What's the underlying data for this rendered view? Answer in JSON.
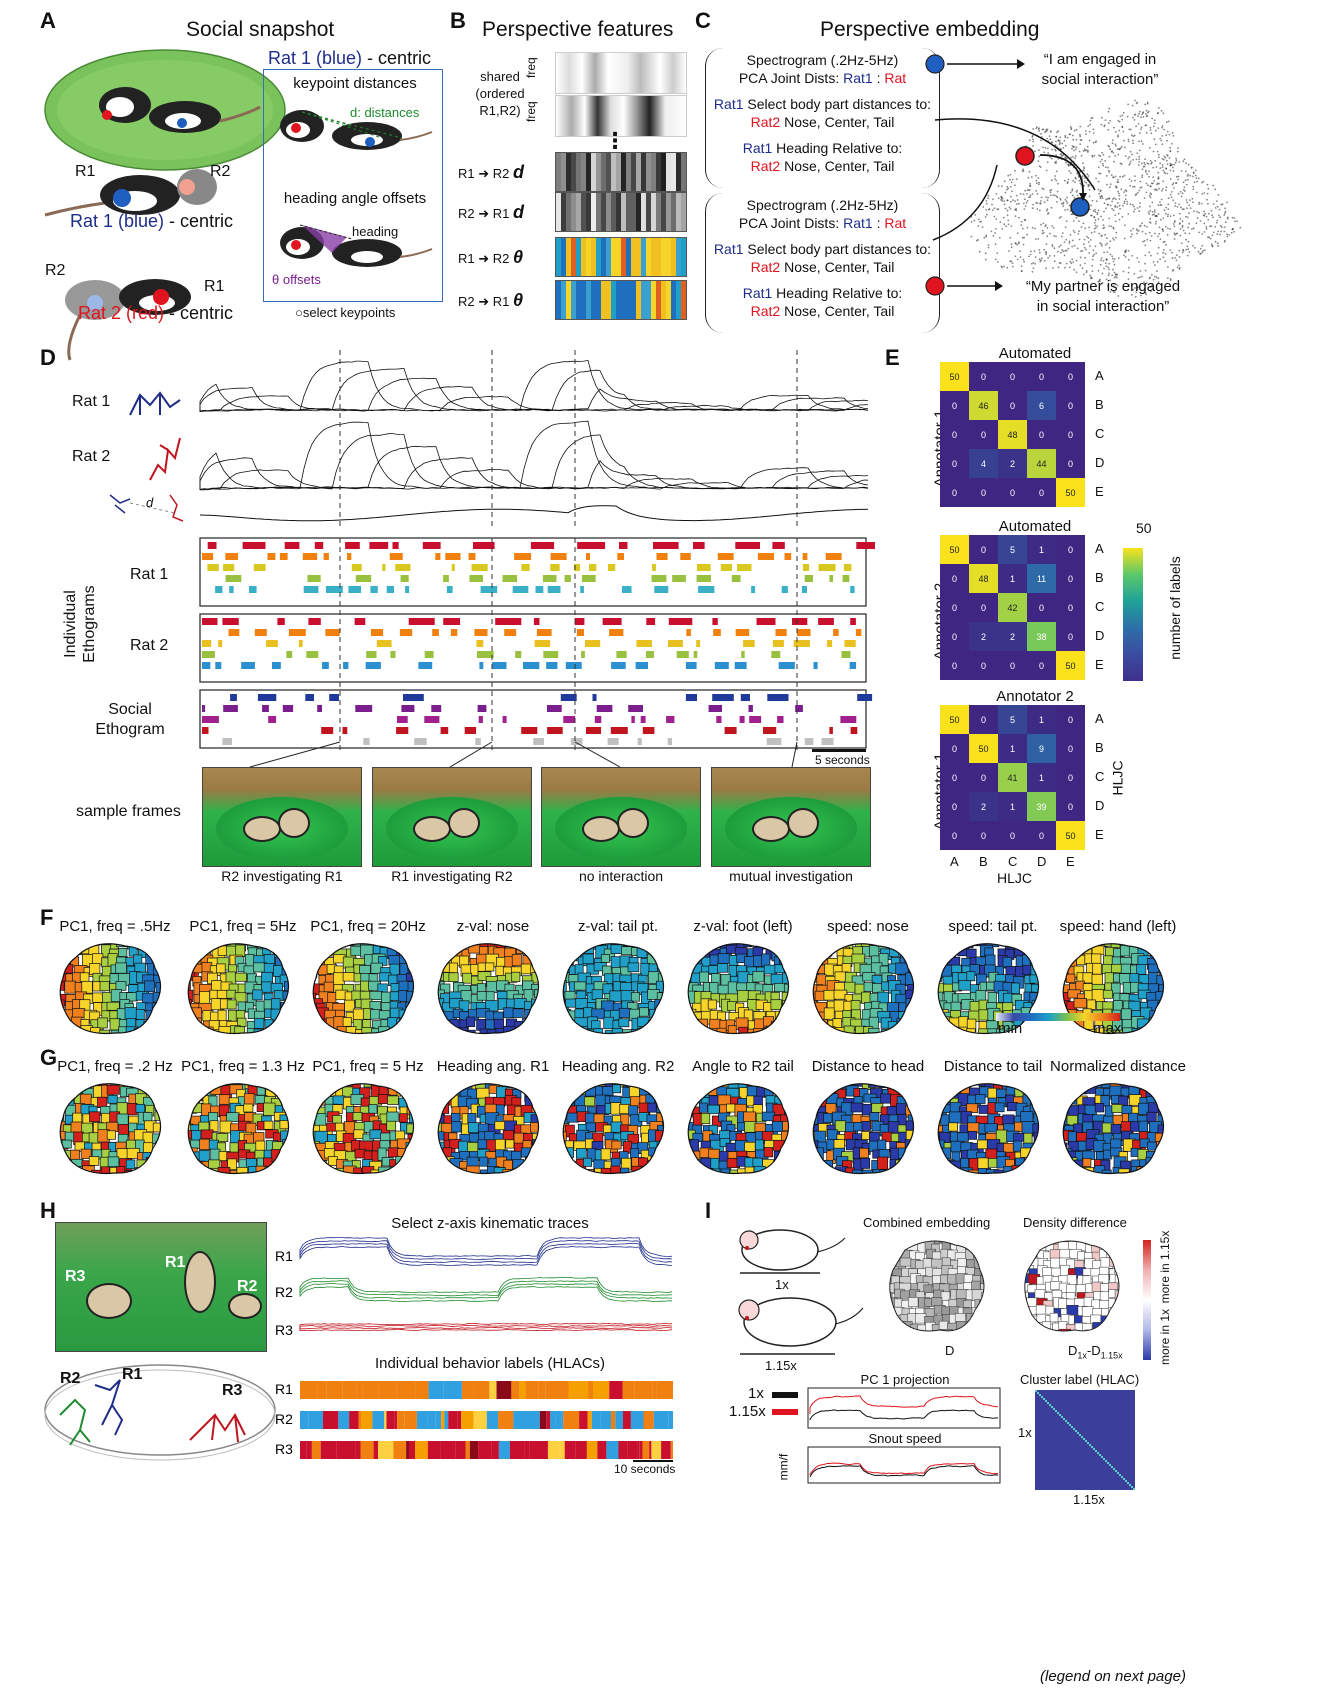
{
  "panelA": {
    "label": "A",
    "title": "Social snapshot",
    "r1": "R1",
    "r2": "R2",
    "rat1_centric": [
      "Rat 1 (blue)",
      " - centric"
    ],
    "rat2_centric": [
      "Rat 2 (red)",
      " - centric"
    ],
    "box_title": [
      "Rat 1 (blue)",
      " - centric"
    ],
    "keypoint_distances": "keypoint distances",
    "d_distances": "d: distances",
    "heading_angle_offsets": "heading angle offsets",
    "heading": "heading",
    "theta_offsets": "θ offsets",
    "select_keypoints": "○select keypoints"
  },
  "panelB": {
    "label": "B",
    "title": "Perspective features",
    "shared": [
      "shared",
      "(ordered",
      "R1,R2)"
    ],
    "freq": "freq",
    "rows": [
      {
        "from": "R1",
        "to": "R2",
        "sym": "d"
      },
      {
        "from": "R2",
        "to": "R1",
        "sym": "d"
      },
      {
        "from": "R1",
        "to": "R2",
        "sym": "θ"
      },
      {
        "from": "R2",
        "to": "R1",
        "sym": "θ"
      }
    ],
    "ellipsis": "⋮"
  },
  "panelC": {
    "label": "C",
    "title": "Perspective embedding",
    "block": {
      "spectrogram": "Spectrogram (.2Hz-5Hz)",
      "pca_pre": "PCA Joint Dists: ",
      "rat1": "Rat1",
      "colon": " : ",
      "rat": "Rat",
      "select_pre": " Select body part distances to:",
      "rat2": "Rat2",
      "parts": " Nose, Center, Tail",
      "heading_pre": " Heading Relative to:"
    },
    "quote1": [
      "“I am engaged in",
      "social interaction”"
    ],
    "quote2": [
      "“My partner is engaged",
      "in social interaction”"
    ]
  },
  "panelD": {
    "label": "D",
    "rat1": "Rat 1",
    "rat2": "Rat 2",
    "d": "d",
    "individual_ethograms": [
      "Individual",
      "Ethograms"
    ],
    "eth_rat1": "Rat 1",
    "eth_rat2": "Rat 2",
    "social_ethogram": [
      "Social",
      "Ethogram"
    ],
    "scalebar": "5 seconds",
    "sample_frames": "sample frames",
    "frames": [
      "R2 investigating R1",
      "R1 investigating R2",
      "no interaction",
      "mutual investigation"
    ]
  },
  "panelE": {
    "label": "E",
    "matrices": [
      {
        "title": "Automated",
        "ylabel": "Annotator 1",
        "values": [
          [
            50,
            0,
            0,
            0,
            0
          ],
          [
            0,
            46,
            0,
            6,
            0
          ],
          [
            0,
            0,
            48,
            0,
            0
          ],
          [
            0,
            4,
            2,
            44,
            0
          ],
          [
            0,
            0,
            0,
            0,
            50
          ]
        ]
      },
      {
        "title": "Automated",
        "ylabel": "Annotator 2",
        "values": [
          [
            50,
            0,
            5,
            1,
            0
          ],
          [
            0,
            48,
            1,
            11,
            0
          ],
          [
            0,
            0,
            42,
            0,
            0
          ],
          [
            0,
            2,
            2,
            38,
            0
          ],
          [
            0,
            0,
            0,
            0,
            50
          ]
        ]
      },
      {
        "title": "Annotator 2",
        "ylabel": "Annotator 1",
        "values": [
          [
            50,
            0,
            5,
            1,
            0
          ],
          [
            0,
            50,
            1,
            9,
            0
          ],
          [
            0,
            0,
            41,
            1,
            0
          ],
          [
            0,
            2,
            1,
            39,
            0
          ],
          [
            0,
            0,
            0,
            0,
            50
          ]
        ]
      }
    ],
    "row_labels": [
      "A",
      "B",
      "C",
      "D",
      "E"
    ],
    "col_labels": [
      "A",
      "B",
      "C",
      "D",
      "E"
    ],
    "xlabel": "HLJC",
    "right_label": "HLJC",
    "cbar_max": "50",
    "cbar_label": "number of labels"
  },
  "panelF": {
    "label": "F",
    "titles": [
      "PC1, freq = .5Hz",
      "PC1, freq = 5Hz",
      "PC1, freq = 20Hz",
      "z-val: nose",
      "z-val: tail pt.",
      "z-val: foot (left)",
      "speed: nose",
      "speed: tail pt.",
      "speed: hand (left)"
    ],
    "cbar_min": "min",
    "cbar_max": "max"
  },
  "panelG": {
    "label": "G",
    "titles": [
      "PC1, freq = .2 Hz",
      "PC1, freq = 1.3 Hz",
      "PC1, freq = 5 Hz",
      "Heading ang. R1",
      "Heading ang. R2",
      "Angle to R2 tail",
      "Distance to head",
      "Distance to tail",
      "Normalized distance"
    ]
  },
  "panelH": {
    "label": "H",
    "photo_labels": [
      "R3",
      "R1",
      "R2"
    ],
    "skeleton_labels": [
      "R2",
      "R1",
      "R3"
    ],
    "kinematic_title": "Select z-axis kinematic traces",
    "trace_labels": [
      "R1",
      "R2",
      "R3"
    ],
    "behavior_title": "Individual behavior labels (HLACs)",
    "bar_labels": [
      "R1",
      "R2",
      "R3"
    ],
    "scalebar": "10 seconds"
  },
  "panelI": {
    "label": "I",
    "size1": "1x",
    "size2": "1.15x",
    "combined": "Combined embedding",
    "density": "Density difference",
    "D": "D",
    "Ddiff": [
      "D",
      "1x",
      "-D",
      "1.15x"
    ],
    "cbar_top": "more in 1.15x",
    "cbar_bottom": "more in 1x",
    "pc1_title": "PC 1 projection",
    "legend_1x": "1x",
    "legend_115x": "1.15x",
    "snout_title": "Snout speed",
    "mmf": "mm/f",
    "cluster_title": "Cluster label (HLAC)",
    "cl_y": "1x",
    "cl_x": "1.15x"
  },
  "footer": "(legend on next page)"
}
